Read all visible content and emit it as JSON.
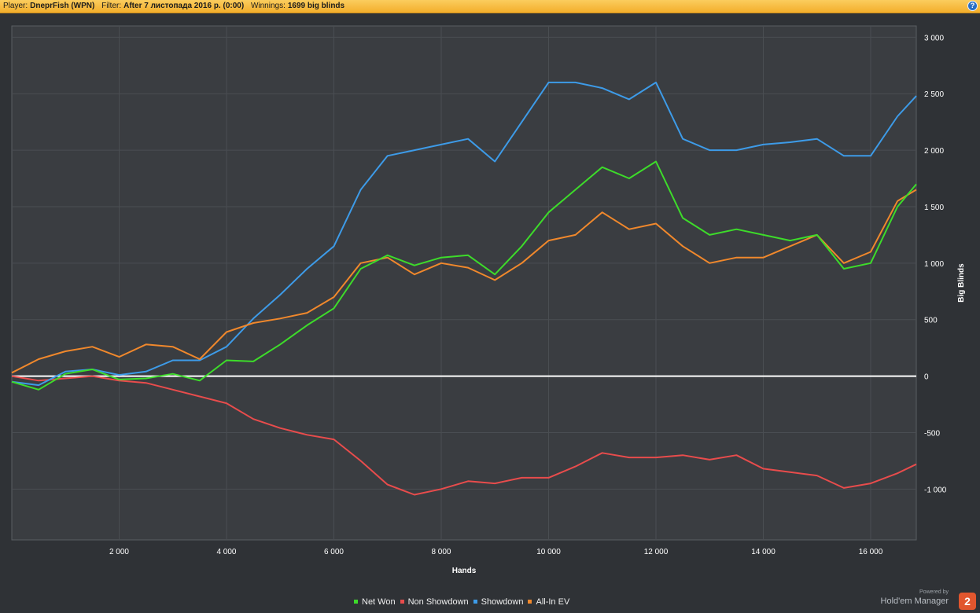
{
  "header": {
    "player_label": "Player:",
    "player_value": "DneprFish (WPN)",
    "filter_label": "Filter:",
    "filter_value": "After 7 листопада 2016 р. (0:00)",
    "winnings_label": "Winnings:",
    "winnings_value": "1699 big blinds",
    "help_icon": "?"
  },
  "branding": {
    "powered_by": "Powered by",
    "product": "Hold'em Manager",
    "badge": "2"
  },
  "chart_data": {
    "type": "line",
    "xlabel": "Hands",
    "ylabel": "Big Blinds",
    "xlim": [
      0,
      16850
    ],
    "ylim": [
      -1450,
      3100
    ],
    "x_ticks": [
      2000,
      4000,
      6000,
      8000,
      10000,
      12000,
      14000,
      16000
    ],
    "x_tick_labels": [
      "2 000",
      "4 000",
      "6 000",
      "8 000",
      "10 000",
      "12 000",
      "14 000",
      "16 000"
    ],
    "y_ticks": [
      3000,
      2500,
      2000,
      1500,
      1000,
      500,
      0,
      -500,
      -1000
    ],
    "y_tick_labels": [
      "3 000",
      "2 500",
      "2 000",
      "1 500",
      "1 000",
      "500",
      "0",
      "-500",
      "-1 000"
    ],
    "grid": true,
    "legend_position": "bottom-center",
    "x": [
      0,
      500,
      1000,
      1500,
      2000,
      2500,
      3000,
      3500,
      4000,
      4500,
      5000,
      5500,
      6000,
      6500,
      7000,
      7500,
      8000,
      8500,
      9000,
      9500,
      10000,
      10500,
      11000,
      11500,
      12000,
      12500,
      13000,
      13500,
      14000,
      14500,
      15000,
      15500,
      16000,
      16500,
      16850
    ],
    "series": [
      {
        "name": "Net Won",
        "color": "#3ddc2a",
        "values": [
          -50,
          -120,
          20,
          60,
          -30,
          -20,
          20,
          -40,
          140,
          130,
          280,
          450,
          600,
          950,
          1070,
          980,
          1050,
          1070,
          900,
          1150,
          1450,
          1650,
          1850,
          1750,
          1900,
          1400,
          1250,
          1300,
          1250,
          1200,
          1250,
          950,
          1000,
          1500,
          1699
        ],
        "color_hex": "#3ddc2a"
      },
      {
        "name": "Non Showdown",
        "color": "#e84c4c",
        "values": [
          0,
          -40,
          -20,
          0,
          -40,
          -60,
          -120,
          -180,
          -240,
          -380,
          -460,
          -520,
          -560,
          -750,
          -960,
          -1050,
          -1000,
          -930,
          -950,
          -900,
          -900,
          -800,
          -680,
          -720,
          -720,
          -700,
          -740,
          -700,
          -820,
          -850,
          -880,
          -990,
          -950,
          -860,
          -780
        ]
      },
      {
        "name": "Showdown",
        "color": "#3d9be8",
        "values": [
          -50,
          -80,
          40,
          60,
          10,
          40,
          140,
          140,
          260,
          510,
          720,
          950,
          1150,
          1650,
          1950,
          2000,
          2050,
          2100,
          1900,
          2250,
          2600,
          2600,
          2550,
          2450,
          2600,
          2100,
          2000,
          2000,
          2050,
          2070,
          2100,
          1950,
          1950,
          2300,
          2480
        ]
      },
      {
        "name": "All-In EV",
        "color": "#f0882c",
        "values": [
          30,
          150,
          220,
          260,
          170,
          280,
          260,
          150,
          390,
          470,
          510,
          560,
          700,
          1000,
          1050,
          900,
          1000,
          960,
          850,
          1000,
          1200,
          1250,
          1450,
          1300,
          1350,
          1150,
          1000,
          1050,
          1050,
          1150,
          1250,
          1000,
          1100,
          1550,
          1650
        ]
      }
    ]
  }
}
